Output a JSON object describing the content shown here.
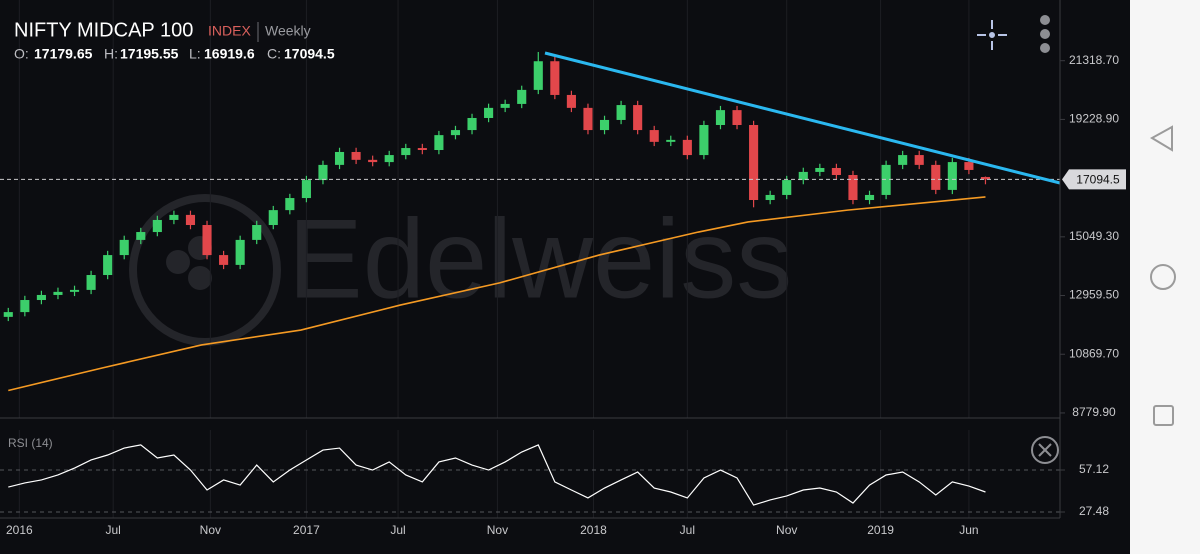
{
  "header": {
    "title": "NIFTY MIDCAP 100",
    "badge": "INDEX",
    "interval": "Weekly",
    "open_label": "O:",
    "high_label": "H:",
    "low_label": "L:",
    "close_label": "C:",
    "watermark": "Edelweiss"
  },
  "chart_data": [
    {
      "type": "candlestick",
      "x": [
        0,
        3,
        6,
        9,
        12,
        15,
        18,
        21,
        24,
        27,
        30,
        33,
        36,
        39,
        42,
        45,
        48,
        51,
        54,
        57,
        60,
        63,
        66,
        69,
        72,
        75,
        78,
        81,
        84,
        87,
        90,
        93,
        96,
        99,
        102,
        105,
        108,
        111,
        114,
        117,
        120,
        123,
        126,
        129,
        132,
        135,
        138,
        141,
        144,
        147,
        150,
        153,
        156,
        159,
        162,
        165,
        168,
        171,
        174,
        177
      ],
      "open": [
        12200,
        12370,
        12800,
        12980,
        13090,
        13160,
        13690,
        14400,
        14940,
        15220,
        15650,
        15830,
        15470,
        14400,
        14050,
        14940,
        15470,
        16000,
        16430,
        17070,
        17610,
        18070,
        17790,
        17710,
        17960,
        18210,
        18140,
        18670,
        18850,
        19280,
        19640,
        19780,
        20280,
        21300,
        20100,
        19640,
        18850,
        19210,
        19740,
        18850,
        18430,
        18500,
        17960,
        19030,
        19560,
        19030,
        16360,
        16540,
        17070,
        17360,
        17500,
        17250,
        16360,
        16540,
        17610,
        17960,
        17610,
        16720,
        17710,
        17179.65
      ],
      "high": [
        12520,
        12950,
        13130,
        13240,
        13310,
        13840,
        14550,
        15090,
        15370,
        15800,
        15980,
        15980,
        15620,
        14550,
        15090,
        15620,
        16150,
        16580,
        17220,
        17760,
        18220,
        18220,
        17940,
        18110,
        18360,
        18360,
        18820,
        19000,
        19430,
        19790,
        19930,
        20430,
        21630,
        21450,
        20250,
        19790,
        19360,
        19890,
        19890,
        19000,
        18650,
        18650,
        19180,
        19710,
        19710,
        19180,
        16690,
        17220,
        17510,
        17650,
        17650,
        17400,
        16690,
        17760,
        18110,
        18110,
        17760,
        17860,
        17860,
        17195.55
      ],
      "low": [
        12050,
        12220,
        12650,
        12830,
        12940,
        13010,
        13540,
        14250,
        14790,
        15070,
        15500,
        15320,
        14250,
        13900,
        13900,
        14790,
        15320,
        15850,
        16280,
        16920,
        17460,
        17640,
        17560,
        17560,
        17810,
        17990,
        17990,
        18520,
        18700,
        19130,
        19490,
        19630,
        20130,
        19950,
        19490,
        18700,
        18700,
        19060,
        18700,
        18280,
        18280,
        17810,
        17810,
        18880,
        18880,
        16100,
        16210,
        16390,
        16920,
        17210,
        17100,
        16210,
        16210,
        16390,
        17460,
        17460,
        16570,
        16570,
        17280,
        16919.6
      ],
      "close": [
        12370,
        12800,
        12980,
        13090,
        13160,
        13690,
        14400,
        14940,
        15220,
        15650,
        15830,
        15470,
        14400,
        14050,
        14940,
        15470,
        16000,
        16430,
        17070,
        17610,
        18070,
        17790,
        17710,
        17960,
        18210,
        18140,
        18670,
        18850,
        19280,
        19640,
        19780,
        20280,
        21300,
        20100,
        19640,
        18850,
        19210,
        19740,
        18850,
        18430,
        18500,
        17960,
        19030,
        19560,
        19030,
        16360,
        16540,
        17070,
        17360,
        17500,
        17250,
        16360,
        16540,
        17610,
        17960,
        17610,
        16720,
        17710,
        17430,
        17094.5
      ],
      "up_color": "#3ccf6b",
      "down_color": "#e2474b",
      "moving_average": {
        "color": "#f59a23",
        "x": [
          0,
          17,
          35,
          53,
          71,
          89,
          107,
          125,
          134,
          152,
          177
        ],
        "values": [
          9580,
          10380,
          11200,
          11730,
          12620,
          13410,
          14400,
          15220,
          15580,
          16000,
          16470
        ]
      },
      "xlim": [
        -1.5,
        190.5
      ],
      "ylim": [
        8600,
        23480
      ],
      "yticks": [
        {
          "value": 8779.9,
          "label": "8779.90"
        },
        {
          "value": 10869.7,
          "label": "10869.70"
        },
        {
          "value": 12959.5,
          "label": "12959.50"
        },
        {
          "value": 15049.3,
          "label": "15049.30"
        },
        {
          "value": 19228.9,
          "label": "19228.90"
        },
        {
          "value": 21318.7,
          "label": "21318.70"
        }
      ]
    },
    {
      "type": "line",
      "title": "RSI (14)",
      "color": "#ffffff",
      "x": [
        0,
        3,
        6,
        9,
        12,
        15,
        18,
        21,
        24,
        27,
        30,
        33,
        36,
        39,
        42,
        45,
        48,
        51,
        54,
        57,
        60,
        63,
        66,
        69,
        72,
        75,
        78,
        81,
        84,
        87,
        90,
        93,
        96,
        99,
        102,
        105,
        108,
        111,
        114,
        117,
        120,
        123,
        126,
        129,
        132,
        135,
        138,
        141,
        144,
        147,
        150,
        153,
        156,
        159,
        162,
        165,
        168,
        171,
        174,
        177
      ],
      "values": [
        45.1,
        48,
        50.1,
        53.6,
        58.5,
        64.2,
        67.7,
        72.6,
        74.8,
        65.6,
        67.7,
        57.1,
        43,
        50.1,
        46.5,
        60.6,
        48.7,
        57.1,
        64.2,
        71.2,
        72.6,
        60.6,
        57.1,
        62.8,
        53.6,
        48.7,
        62.8,
        65.6,
        60.6,
        57.1,
        62.8,
        69.8,
        74.8,
        48.7,
        43,
        37.4,
        44.4,
        50.1,
        55.7,
        44.4,
        41.6,
        37.4,
        51.5,
        57.1,
        51.5,
        32.4,
        36,
        38.8,
        43,
        44.4,
        41.6,
        33.8,
        46.5,
        53.6,
        55.7,
        48.7,
        39.5,
        48.7,
        45.8,
        41.6
      ],
      "xlim": [
        -1.5,
        190.5
      ],
      "ylim": [
        23.25,
        85.35
      ],
      "yticks": [
        27.48,
        57.12
      ],
      "xticks": [
        {
          "value": 2,
          "label": "2016"
        },
        {
          "value": 19,
          "label": "Jul"
        },
        {
          "value": 36.6,
          "label": "Nov"
        },
        {
          "value": 54,
          "label": "2017"
        },
        {
          "value": 70.6,
          "label": "Jul"
        },
        {
          "value": 88.6,
          "label": "Nov"
        },
        {
          "value": 106,
          "label": "2018"
        },
        {
          "value": 123,
          "label": "Jul"
        },
        {
          "value": 141,
          "label": "Nov"
        },
        {
          "value": 158,
          "label": "2019"
        },
        {
          "value": 174,
          "label": "Jun"
        }
      ]
    }
  ]
}
